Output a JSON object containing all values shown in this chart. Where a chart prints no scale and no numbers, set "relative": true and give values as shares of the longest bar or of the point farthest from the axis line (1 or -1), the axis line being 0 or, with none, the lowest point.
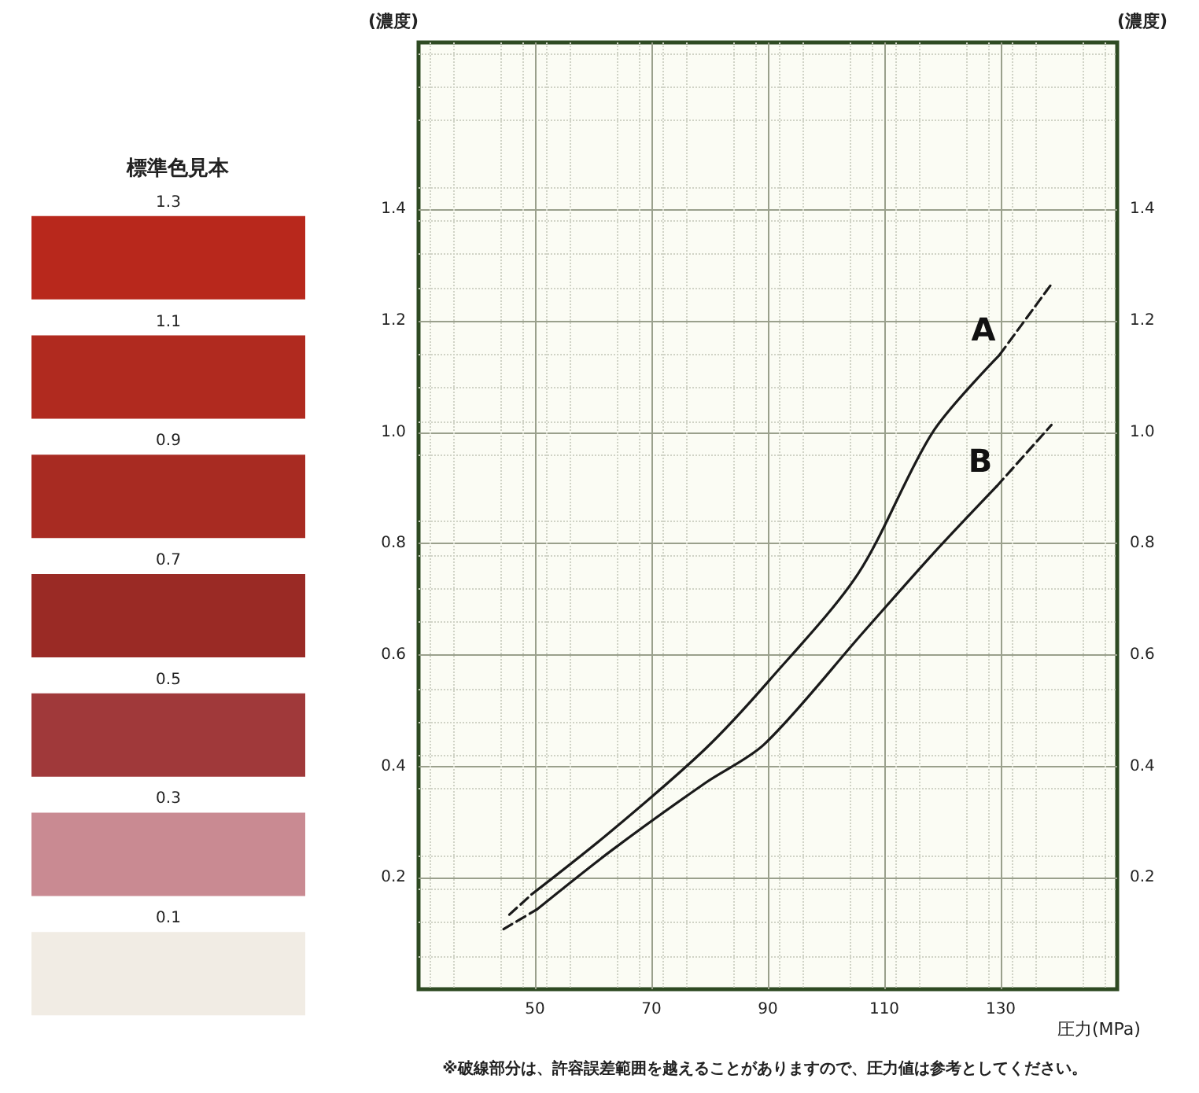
{
  "chart_data": [
    {
      "type": "bar",
      "orientation": "horizontal",
      "relative": true,
      "title": "標準色見本",
      "categories": [
        "1.3",
        "1.1",
        "0.9",
        "0.7",
        "0.5",
        "0.3",
        "0.1"
      ],
      "values": [
        1,
        1,
        1,
        1,
        1,
        1,
        1
      ],
      "colors": [
        "#b8281c",
        "#b02a1f",
        "#a82b22",
        "#9a2a25",
        "#a0393a",
        "#c98a92",
        "#f1ece4"
      ]
    },
    {
      "type": "line",
      "ylabel": "(濃度)",
      "y2label": "(濃度)",
      "xlabel": "圧力(MPa)",
      "xlim": [
        30,
        150
      ],
      "xticks": [
        50,
        70,
        90,
        110,
        130
      ],
      "ylim": [
        0,
        1.7
      ],
      "yticks": [
        0.2,
        0.4,
        0.6,
        0.8,
        {
          "value": 1,
          "label": "1.0"
        },
        1.2,
        1.4
      ],
      "y2lim": [
        0,
        1.7
      ],
      "y2ticks": [
        0.2,
        0.4,
        0.6,
        0.8,
        {
          "value": 1,
          "label": "1.0"
        },
        1.2,
        1.4
      ],
      "grid": true,
      "legend": false,
      "marker": "none",
      "line_style": "solid",
      "series": [
        {
          "name": "A",
          "color": "#1a1a1a",
          "x": [
            49.4,
            63,
            79.2,
            90.2,
            105.5,
            118.3,
            129.8
          ],
          "values": [
            0.17,
            0.283,
            0.431,
            0.554,
            0.746,
            1.0,
            1.139
          ]
        },
        {
          "name": "B",
          "color": "#1a1a1a",
          "x": [
            50.3,
            63,
            79.2,
            89.4,
            106.4,
            118.3,
            129.3
          ],
          "values": [
            0.143,
            0.248,
            0.37,
            0.44,
            0.641,
            0.781,
            0.903
          ]
        },
        {
          "color": "#1a1a1a",
          "line_style": "dashed",
          "x": [
            45.6,
            49.4
          ],
          "values": [
            0.134,
            0.17
          ]
        },
        {
          "color": "#1a1a1a",
          "line_style": "dashed",
          "x": [
            129.8,
            138.7
          ],
          "values": [
            1.139,
            1.266
          ]
        },
        {
          "color": "#1a1a1a",
          "line_style": "dashed",
          "x": [
            44.6,
            50.3
          ],
          "values": [
            0.108,
            0.143
          ]
        },
        {
          "color": "#1a1a1a",
          "line_style": "dashed",
          "x": [
            129.3,
            138.7
          ],
          "values": [
            0.903,
            1.013
          ]
        }
      ],
      "annotations": [
        "※破線部分は、許容誤差範囲を越えることがありますので、圧力値は参考としてください。"
      ]
    }
  ]
}
